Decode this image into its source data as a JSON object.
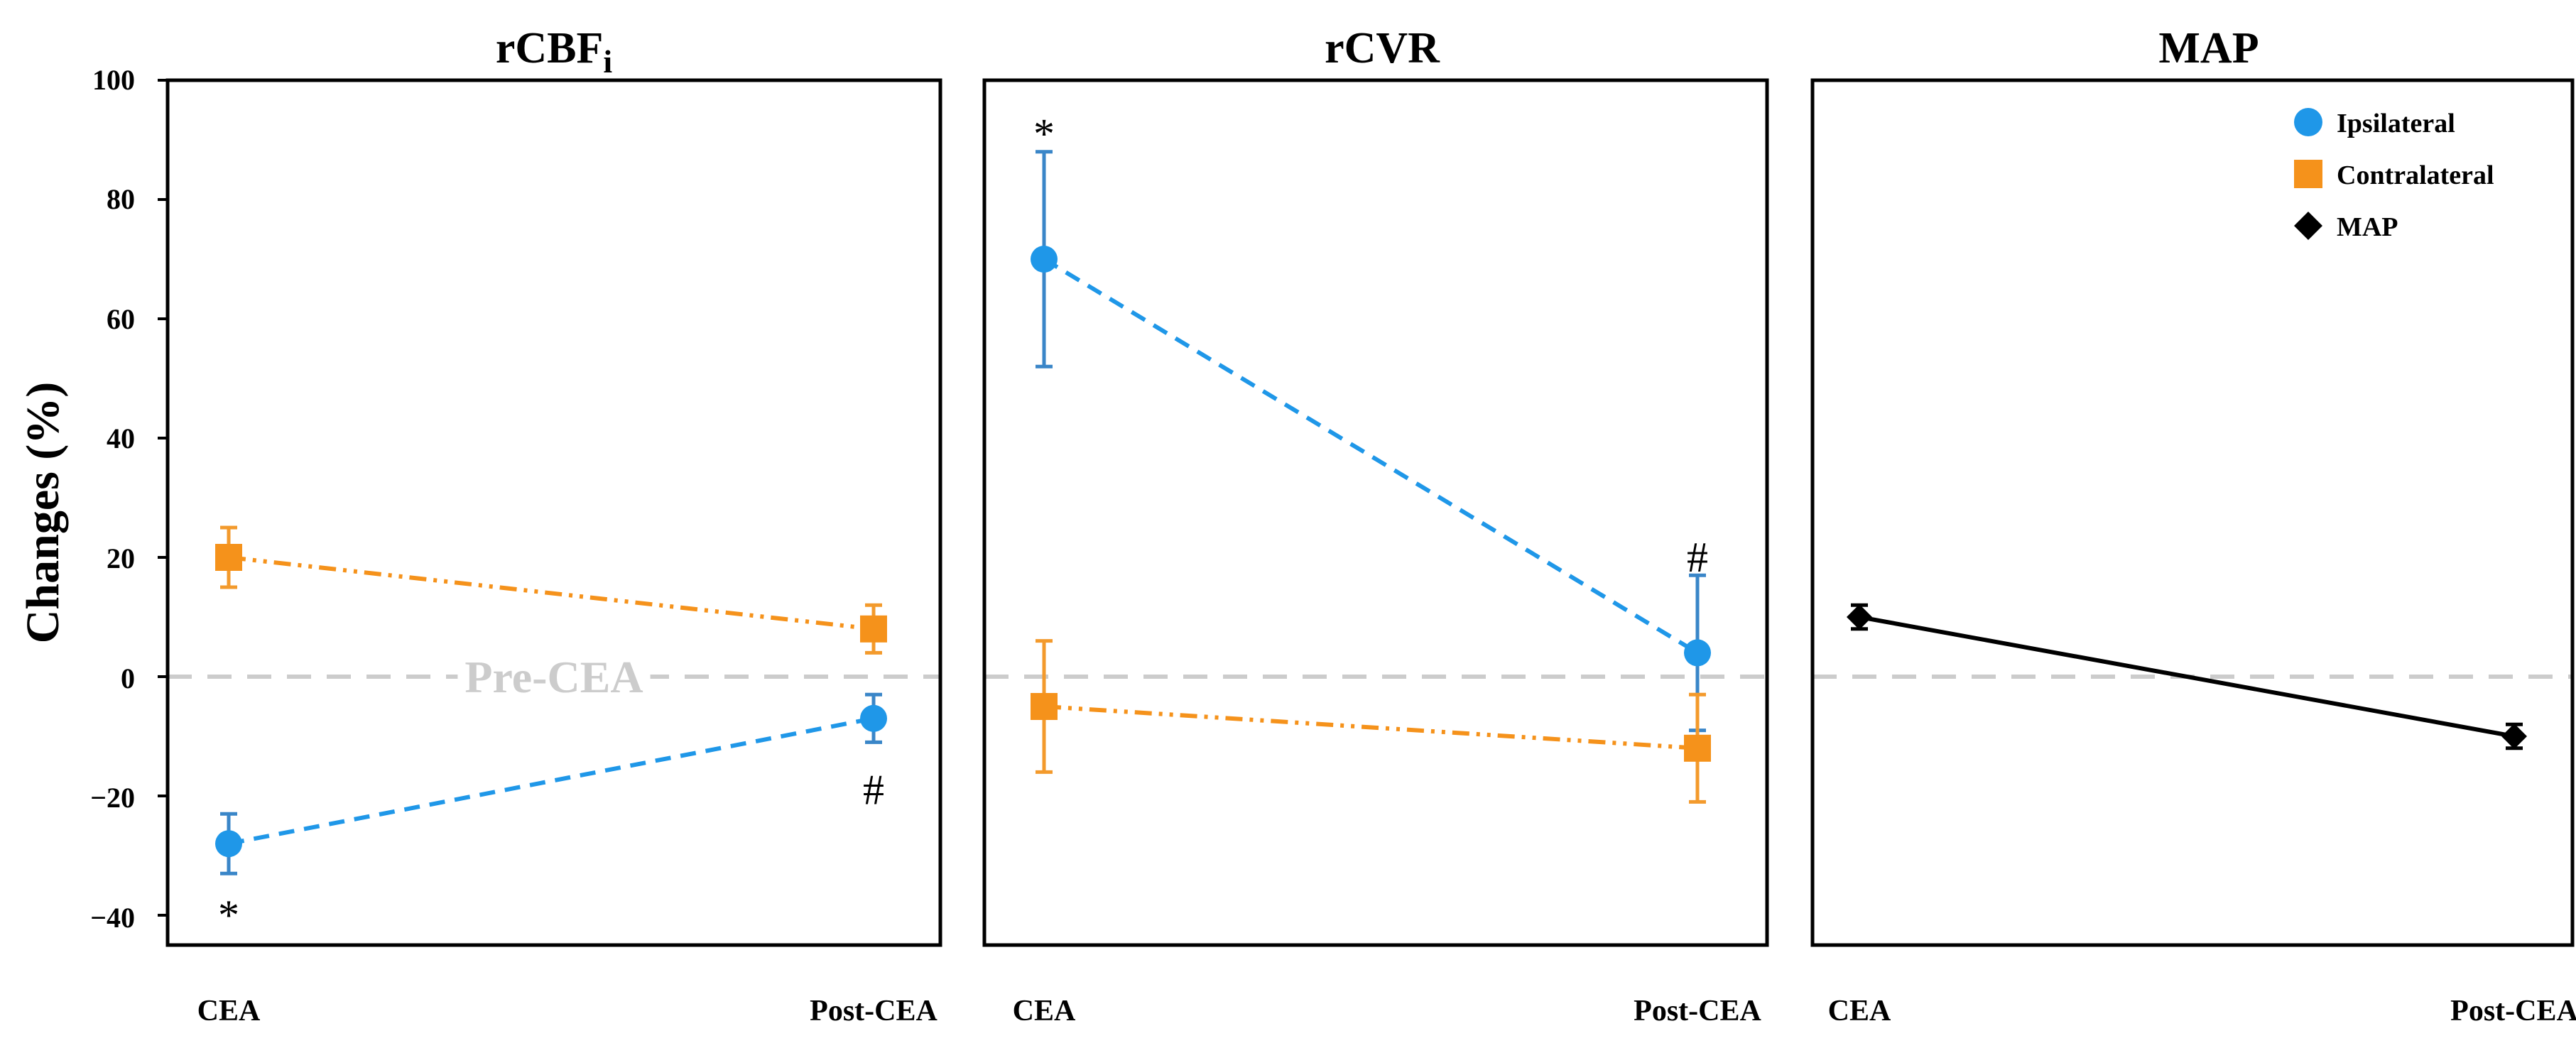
{
  "colors": {
    "ipsilateral": "#1f97e8",
    "contralateral": "#f5921b",
    "map": "#000000",
    "reference": "#cccccc",
    "errorbar_blue": "#3a86c8",
    "errorbar_orange": "#f39a2c"
  },
  "chart_data": [
    {
      "type": "line",
      "title": "rCBF",
      "title_subscript": "i",
      "ylabel": "Changes (%)",
      "ylim": [
        -45,
        100
      ],
      "yticks": [
        "100",
        "80",
        "60",
        "40",
        "20",
        "0",
        "−20",
        "−40"
      ],
      "ytick_values": [
        100,
        80,
        60,
        40,
        20,
        0,
        -20,
        -40
      ],
      "categories": [
        "CEA",
        "Post-CEA"
      ],
      "reference_line": {
        "y": 0,
        "label": "Pre-CEA"
      },
      "series": [
        {
          "name": "Ipsilateral",
          "values": [
            -28,
            -7
          ],
          "errors": [
            5,
            4
          ],
          "marker": "circle",
          "line_style": "dashed",
          "color_key": "ipsilateral"
        },
        {
          "name": "Contralateral",
          "values": [
            20,
            8
          ],
          "errors": [
            5,
            4
          ],
          "marker": "square",
          "line_style": "dashdotdot",
          "color_key": "contralateral"
        }
      ],
      "annotations": [
        {
          "text": "*",
          "category": "CEA",
          "y": -40
        },
        {
          "text": "#",
          "category": "Post-CEA",
          "y": -19
        }
      ]
    },
    {
      "type": "line",
      "title": "rCVR",
      "ylim": [
        -45,
        100
      ],
      "categories": [
        "CEA",
        "Post-CEA"
      ],
      "reference_line": {
        "y": 0,
        "label": ""
      },
      "series": [
        {
          "name": "Ipsilateral",
          "values": [
            70,
            4
          ],
          "errors": [
            18,
            13
          ],
          "marker": "circle",
          "line_style": "dashed",
          "color_key": "ipsilateral"
        },
        {
          "name": "Contralateral",
          "values": [
            -5,
            -12
          ],
          "errors": [
            11,
            9
          ],
          "marker": "square",
          "line_style": "dashdotdot",
          "color_key": "contralateral"
        }
      ],
      "annotations": [
        {
          "text": "*",
          "category": "CEA",
          "y": 91
        },
        {
          "text": "#",
          "category": "Post-CEA",
          "y": 20
        }
      ]
    },
    {
      "type": "line",
      "title": "MAP",
      "ylim": [
        -45,
        100
      ],
      "categories": [
        "CEA",
        "Post-CEA"
      ],
      "reference_line": {
        "y": 0,
        "label": ""
      },
      "series": [
        {
          "name": "MAP",
          "values": [
            10,
            -10
          ],
          "errors": [
            2,
            2
          ],
          "marker": "diamond",
          "line_style": "solid",
          "color_key": "map"
        }
      ],
      "legend": {
        "placement": "top-right",
        "entries": [
          {
            "label": "Ipsilateral",
            "marker": "circle",
            "color_key": "ipsilateral"
          },
          {
            "label": "Contralateral",
            "marker": "square",
            "color_key": "contralateral"
          },
          {
            "label": "MAP",
            "marker": "diamond",
            "color_key": "map"
          }
        ]
      }
    }
  ]
}
